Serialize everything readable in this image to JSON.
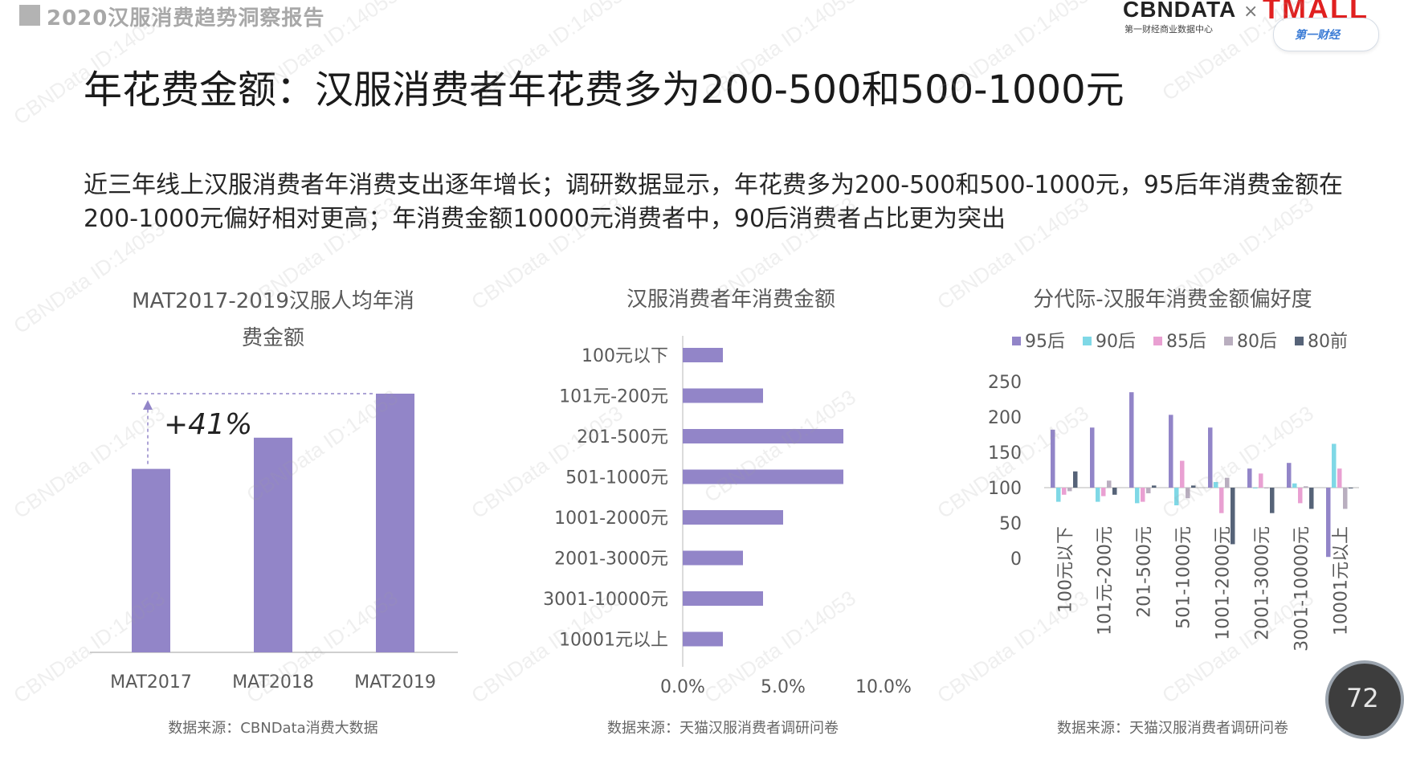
{
  "header": {
    "report_title": "2020汉服消费趋势洞察报告",
    "logo_cbn": "CBNDATA",
    "logo_cbn_sub": "第一财经商业数据中心",
    "logo_times": "×",
    "logo_tmall": "TMALL",
    "pill_label": "第一财经"
  },
  "main_title": "年花费金额：汉服消费者年花费多为200-500和500-1000元",
  "description": "近三年线上汉服消费者年消费支出逐年增长；调研数据显示，年花费多为200-500和500-1000元，95后年消费金额在200-1000元偏好相对更高；年消费金额10000元消费者中，90后消费者占比更为突出",
  "watermark_text": "CBNData ID:14053",
  "page_badge": "72",
  "colors": {
    "purple": "#9285c8",
    "cyan": "#7fd8e6",
    "pink": "#e9a0d2",
    "grey": "#b9aebf",
    "navy": "#566378"
  },
  "chart_data": [
    {
      "type": "bar",
      "title_line1": "MAT2017-2019汉服人均年消",
      "title_line2": "费金额",
      "categories": [
        "MAT2017",
        "MAT2018",
        "MAT2019"
      ],
      "values": [
        100,
        117,
        141
      ],
      "annotation": "+41%",
      "source": "数据来源：CBNData消费大数据"
    },
    {
      "type": "bar",
      "orientation": "horizontal",
      "title": "汉服消费者年消费金额",
      "categories": [
        "100元以下",
        "101元-200元",
        "201-500元",
        "501-1000元",
        "1001-2000元",
        "2001-3000元",
        "3001-10000元",
        "10001元以上"
      ],
      "values": [
        2.0,
        4.0,
        8.0,
        8.0,
        5.0,
        3.0,
        4.0,
        2.0
      ],
      "x_ticks": [
        "0.0%",
        "5.0%",
        "10.0%"
      ],
      "xlim": [
        0,
        10
      ],
      "source": "数据来源：天猫汉服消费者调研问卷"
    },
    {
      "type": "bar",
      "title": "分代际-汉服年消费金额偏好度",
      "categories": [
        "100元以下",
        "101元-200元",
        "201-500元",
        "501-1000元",
        "1001-2000元",
        "2001-3000元",
        "3001-10000元",
        "10001元以上"
      ],
      "baseline": 100,
      "ylim": [
        0,
        250
      ],
      "y_ticks": [
        "0",
        "50",
        "100",
        "150",
        "200",
        "250"
      ],
      "series": [
        {
          "name": "95后",
          "values": [
            182,
            185,
            235,
            203,
            185,
            127,
            135,
            2
          ]
        },
        {
          "name": "90后",
          "values": [
            80,
            80,
            78,
            75,
            108,
            100,
            106,
            162
          ]
        },
        {
          "name": "85后",
          "values": [
            90,
            88,
            80,
            138,
            64,
            120,
            78,
            127
          ]
        },
        {
          "name": "80后",
          "values": [
            95,
            110,
            92,
            85,
            114,
            100,
            102,
            70
          ]
        },
        {
          "name": "80前",
          "values": [
            123,
            90,
            103,
            103,
            20,
            64,
            70,
            100
          ]
        }
      ],
      "source": "数据来源：天猫汉服消费者调研问卷"
    }
  ]
}
